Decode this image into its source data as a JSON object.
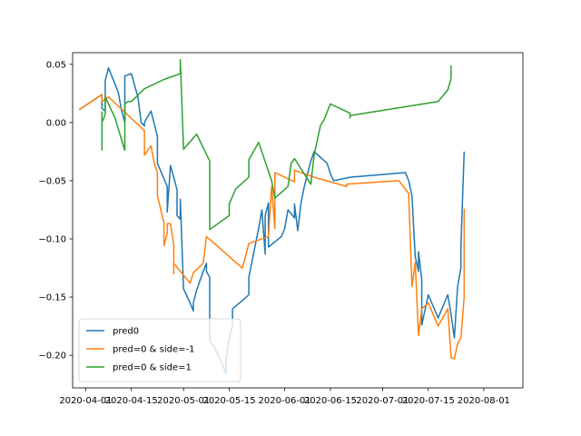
{
  "chart_data": {
    "type": "line",
    "title": "",
    "xlabel": "",
    "ylabel": "",
    "xlim": [
      "2020-03-28",
      "2020-08-13"
    ],
    "ylim": [
      -0.228,
      0.06
    ],
    "grid": false,
    "legend_position": "lower-left",
    "x_ticks": [
      {
        "value": "2020-04-01",
        "label": "2020-04-01"
      },
      {
        "value": "2020-04-15",
        "label": "2020-04-15"
      },
      {
        "value": "2020-05-01",
        "label": "2020-05-01"
      },
      {
        "value": "2020-05-15",
        "label": "2020-05-15"
      },
      {
        "value": "2020-06-01",
        "label": "2020-06-01"
      },
      {
        "value": "2020-06-15",
        "label": "2020-06-15"
      },
      {
        "value": "2020-07-01",
        "label": "2020-07-01"
      },
      {
        "value": "2020-07-15",
        "label": "2020-07-15"
      },
      {
        "value": "2020-08-01",
        "label": "2020-08-01"
      }
    ],
    "y_ticks": [
      {
        "value": -0.2,
        "label": "−0.20"
      },
      {
        "value": -0.15,
        "label": "−0.15"
      },
      {
        "value": -0.1,
        "label": "−0.10"
      },
      {
        "value": -0.05,
        "label": "−0.05"
      },
      {
        "value": 0.0,
        "label": "0.00"
      },
      {
        "value": 0.05,
        "label": "0.05"
      }
    ],
    "series": [
      {
        "name": "pred0",
        "color": "#1f77b4",
        "points": [
          [
            "2020-03-30",
            0.011
          ],
          [
            "2020-04-06",
            0.024
          ],
          [
            "2020-04-06",
            0.012
          ],
          [
            "2020-04-07",
            0.01
          ],
          [
            "2020-04-07",
            0.036
          ],
          [
            "2020-04-08",
            0.047
          ],
          [
            "2020-04-11",
            0.026
          ],
          [
            "2020-04-12",
            0.01
          ],
          [
            "2020-04-13",
            0.0
          ],
          [
            "2020-04-13",
            0.04
          ],
          [
            "2020-04-15",
            0.042
          ],
          [
            "2020-04-17",
            0.022
          ],
          [
            "2020-04-18",
            0.0
          ],
          [
            "2020-04-19",
            -0.003
          ],
          [
            "2020-04-19",
            0.0
          ],
          [
            "2020-04-21",
            0.01
          ],
          [
            "2020-04-23",
            -0.012
          ],
          [
            "2020-04-23",
            -0.035
          ],
          [
            "2020-04-26",
            -0.055
          ],
          [
            "2020-04-26",
            -0.077
          ],
          [
            "2020-04-27",
            -0.037
          ],
          [
            "2020-04-28",
            -0.047
          ],
          [
            "2020-04-29",
            -0.058
          ],
          [
            "2020-04-29",
            -0.08
          ],
          [
            "2020-04-30",
            -0.083
          ],
          [
            "2020-04-30",
            -0.066
          ],
          [
            "2020-05-01",
            -0.143
          ],
          [
            "2020-05-03",
            -0.155
          ],
          [
            "2020-05-04",
            -0.162
          ],
          [
            "2020-05-04",
            -0.155
          ],
          [
            "2020-05-05",
            -0.144
          ],
          [
            "2020-05-07",
            -0.128
          ],
          [
            "2020-05-08",
            -0.121
          ],
          [
            "2020-05-08",
            -0.128
          ],
          [
            "2020-05-09",
            -0.133
          ],
          [
            "2020-05-09",
            -0.188
          ],
          [
            "2020-05-10",
            -0.191
          ],
          [
            "2020-05-13",
            -0.208
          ],
          [
            "2020-05-14",
            -0.216
          ],
          [
            "2020-05-14",
            -0.204
          ],
          [
            "2020-05-15",
            -0.185
          ],
          [
            "2020-05-16",
            -0.174
          ],
          [
            "2020-05-16",
            -0.16
          ],
          [
            "2020-05-19",
            -0.153
          ],
          [
            "2020-05-21",
            -0.148
          ],
          [
            "2020-05-21",
            -0.133
          ],
          [
            "2020-05-24",
            -0.091
          ],
          [
            "2020-05-25",
            -0.075
          ],
          [
            "2020-05-26",
            -0.113
          ],
          [
            "2020-05-26",
            -0.08
          ],
          [
            "2020-05-27",
            -0.069
          ],
          [
            "2020-05-27",
            -0.107
          ],
          [
            "2020-05-31",
            -0.098
          ],
          [
            "2020-06-01",
            -0.091
          ],
          [
            "2020-06-02",
            -0.075
          ],
          [
            "2020-06-04",
            -0.082
          ],
          [
            "2020-06-04",
            -0.07
          ],
          [
            "2020-06-05",
            -0.093
          ],
          [
            "2020-06-06",
            -0.069
          ],
          [
            "2020-06-07",
            -0.055
          ],
          [
            "2020-06-09",
            -0.033
          ],
          [
            "2020-06-10",
            -0.025
          ],
          [
            "2020-06-14",
            -0.035
          ],
          [
            "2020-06-15",
            -0.044
          ],
          [
            "2020-06-16",
            -0.05
          ],
          [
            "2020-06-21",
            -0.047
          ],
          [
            "2020-07-08",
            -0.043
          ],
          [
            "2020-07-09",
            -0.05
          ],
          [
            "2020-07-10",
            -0.063
          ],
          [
            "2020-07-11",
            -0.115
          ],
          [
            "2020-07-12",
            -0.128
          ],
          [
            "2020-07-12",
            -0.111
          ],
          [
            "2020-07-13",
            -0.135
          ],
          [
            "2020-07-13",
            -0.174
          ],
          [
            "2020-07-15",
            -0.148
          ],
          [
            "2020-07-18",
            -0.168
          ],
          [
            "2020-07-21",
            -0.148
          ],
          [
            "2020-07-22",
            -0.165
          ],
          [
            "2020-07-23",
            -0.185
          ],
          [
            "2020-07-24",
            -0.141
          ],
          [
            "2020-07-25",
            -0.125
          ],
          [
            "2020-07-25",
            -0.107
          ],
          [
            "2020-07-26",
            -0.025
          ]
        ]
      },
      {
        "name": "pred=0 & side=-1",
        "color": "#ff7f0e",
        "points": [
          [
            "2020-03-30",
            0.011
          ],
          [
            "2020-04-06",
            0.024
          ],
          [
            "2020-04-06",
            0.018
          ],
          [
            "2020-04-08",
            0.022
          ],
          [
            "2020-04-19",
            -0.007
          ],
          [
            "2020-04-19",
            -0.028
          ],
          [
            "2020-04-21",
            -0.02
          ],
          [
            "2020-04-22",
            -0.035
          ],
          [
            "2020-04-23",
            -0.043
          ],
          [
            "2020-04-23",
            -0.063
          ],
          [
            "2020-04-25",
            -0.086
          ],
          [
            "2020-04-25",
            -0.106
          ],
          [
            "2020-04-26",
            -0.095
          ],
          [
            "2020-04-26",
            -0.087
          ],
          [
            "2020-04-27",
            -0.087
          ],
          [
            "2020-04-28",
            -0.105
          ],
          [
            "2020-04-28",
            -0.13
          ],
          [
            "2020-04-28",
            -0.121
          ],
          [
            "2020-05-03",
            -0.138
          ],
          [
            "2020-05-04",
            -0.129
          ],
          [
            "2020-05-07",
            -0.121
          ],
          [
            "2020-05-08",
            -0.098
          ],
          [
            "2020-05-19",
            -0.125
          ],
          [
            "2020-05-20",
            -0.115
          ],
          [
            "2020-05-21",
            -0.104
          ],
          [
            "2020-05-27",
            -0.098
          ],
          [
            "2020-05-28",
            -0.055
          ],
          [
            "2020-05-29",
            -0.091
          ],
          [
            "2020-05-29",
            -0.043
          ],
          [
            "2020-06-04",
            -0.051
          ],
          [
            "2020-06-04",
            -0.041
          ],
          [
            "2020-06-10",
            -0.047
          ],
          [
            "2020-06-20",
            -0.055
          ],
          [
            "2020-06-20",
            -0.053
          ],
          [
            "2020-07-06",
            -0.05
          ],
          [
            "2020-07-09",
            -0.061
          ],
          [
            "2020-07-10",
            -0.141
          ],
          [
            "2020-07-11",
            -0.12
          ],
          [
            "2020-07-12",
            -0.183
          ],
          [
            "2020-07-13",
            -0.16
          ],
          [
            "2020-07-15",
            -0.155
          ],
          [
            "2020-07-18",
            -0.175
          ],
          [
            "2020-07-21",
            -0.16
          ],
          [
            "2020-07-22",
            -0.202
          ],
          [
            "2020-07-23",
            -0.203
          ],
          [
            "2020-07-24",
            -0.19
          ],
          [
            "2020-07-25",
            -0.185
          ],
          [
            "2020-07-26",
            -0.15
          ],
          [
            "2020-07-26",
            -0.074
          ]
        ]
      },
      {
        "name": "pred=0 & side=1",
        "color": "#2ca02c",
        "points": [
          [
            "2020-04-06",
            -0.024
          ],
          [
            "2020-04-06",
            0.009
          ],
          [
            "2020-04-06",
            0.0
          ],
          [
            "2020-04-07",
            0.007
          ],
          [
            "2020-04-07",
            0.022
          ],
          [
            "2020-04-08",
            0.016
          ],
          [
            "2020-04-10",
            0.004
          ],
          [
            "2020-04-13",
            -0.024
          ],
          [
            "2020-04-13",
            0.016
          ],
          [
            "2020-04-14",
            0.018
          ],
          [
            "2020-04-15",
            0.018
          ],
          [
            "2020-04-19",
            0.029
          ],
          [
            "2020-04-25",
            0.037
          ],
          [
            "2020-04-30",
            0.042
          ],
          [
            "2020-04-30",
            0.054
          ],
          [
            "2020-05-01",
            -0.023
          ],
          [
            "2020-05-05",
            -0.01
          ],
          [
            "2020-05-09",
            -0.033
          ],
          [
            "2020-05-09",
            -0.092
          ],
          [
            "2020-05-15",
            -0.08
          ],
          [
            "2020-05-15",
            -0.07
          ],
          [
            "2020-05-17",
            -0.057
          ],
          [
            "2020-05-21",
            -0.047
          ],
          [
            "2020-05-21",
            -0.032
          ],
          [
            "2020-05-22",
            -0.027
          ],
          [
            "2020-05-24",
            -0.017
          ],
          [
            "2020-05-28",
            -0.05
          ],
          [
            "2020-05-29",
            -0.065
          ],
          [
            "2020-06-02",
            -0.055
          ],
          [
            "2020-06-03",
            -0.035
          ],
          [
            "2020-06-04",
            -0.031
          ],
          [
            "2020-06-09",
            -0.053
          ],
          [
            "2020-06-10",
            -0.028
          ],
          [
            "2020-06-12",
            -0.002
          ],
          [
            "2020-06-13",
            0.002
          ],
          [
            "2020-06-15",
            0.016
          ],
          [
            "2020-06-21",
            0.008
          ],
          [
            "2020-06-21",
            0.004
          ],
          [
            "2020-06-21",
            0.006
          ],
          [
            "2020-07-18",
            0.018
          ],
          [
            "2020-07-21",
            0.028
          ],
          [
            "2020-07-22",
            0.038
          ],
          [
            "2020-07-22",
            0.049
          ]
        ]
      }
    ]
  }
}
